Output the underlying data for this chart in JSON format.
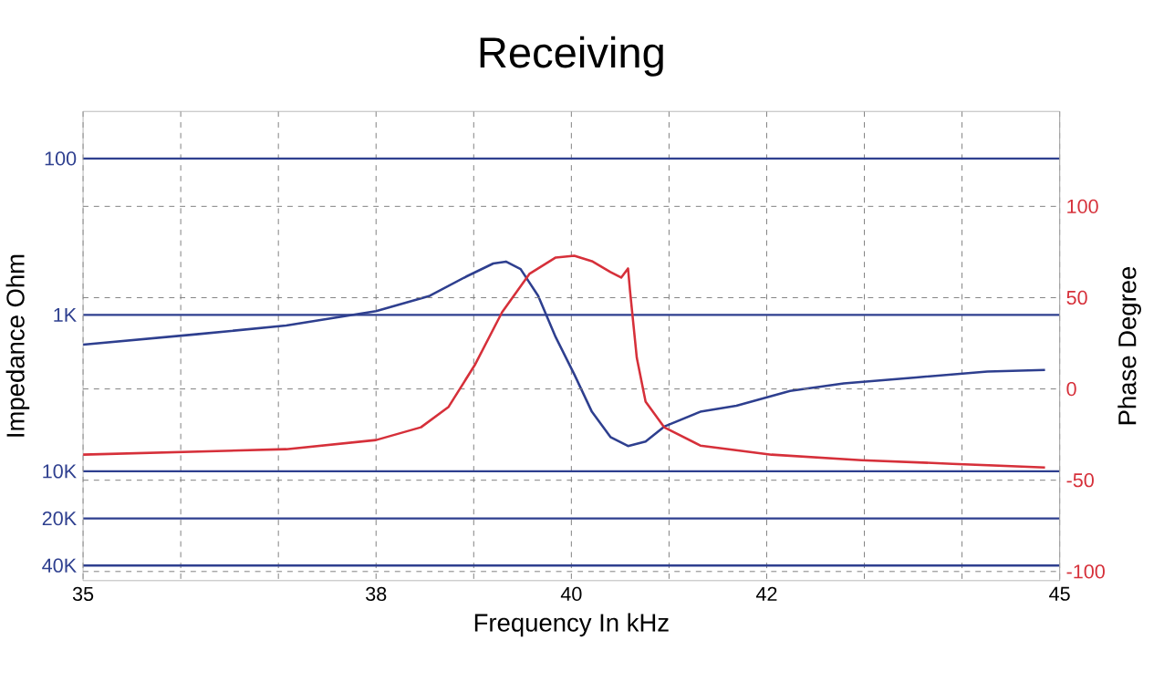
{
  "chart_data": {
    "type": "line",
    "title": "Receiving",
    "xlabel": "Frequency In kHz",
    "ylabel": "Impedance Ohm",
    "y2label": "Phase Degree",
    "xlim": [
      35,
      45
    ],
    "xticks": [
      35,
      {
        "value": 36,
        "label": null
      },
      {
        "value": 37,
        "label": null
      },
      38,
      {
        "value": 39,
        "label": null
      },
      40,
      {
        "value": 41,
        "label": null
      },
      42,
      {
        "value": 43,
        "label": null
      },
      {
        "value": 44,
        "label": null
      },
      45
    ],
    "ylim": [
      50000,
      50
    ],
    "log": "y",
    "yticks": [
      100,
      {
        "value": 1000,
        "label": "1K"
      },
      {
        "value": 10000,
        "label": "10K"
      },
      {
        "value": 20000,
        "label": "20K"
      },
      {
        "value": 40000,
        "label": "40K"
      }
    ],
    "y2lim": [
      -105,
      152
    ],
    "y2ticks": [
      -100,
      -50,
      0,
      50,
      100
    ],
    "grid": true,
    "marker": "none",
    "series": [
      {
        "color": "#2e3f8f",
        "x": [
          35,
          36.16,
          37.08,
          38.0,
          38.55,
          38.92,
          39.2,
          39.33,
          39.48,
          39.66,
          39.84,
          40.03,
          40.21,
          40.4,
          40.58,
          40.76,
          40.95,
          41.32,
          41.69,
          42.24,
          42.79,
          43.53,
          44.26,
          44.85
        ],
        "values": [
          1550,
          1330,
          1170,
          946,
          755,
          570,
          469,
          456,
          509,
          755,
          1390,
          2400,
          4160,
          6040,
          6890,
          6450,
          5180,
          4160,
          3810,
          3060,
          2740,
          2510,
          2300,
          2250
        ]
      },
      {
        "color": "#d6303a",
        "axis": "y2",
        "x": [
          35,
          37.08,
          38.0,
          38.46,
          38.74,
          39.01,
          39.29,
          39.57,
          39.84,
          40.03,
          40.21,
          40.4,
          40.51,
          40.58,
          40.6,
          40.67,
          40.76,
          40.95,
          41.32,
          42.05,
          42.97,
          43.9,
          44.85
        ],
        "values": [
          -36,
          -33,
          -28,
          -21,
          -10,
          13,
          42,
          63,
          72,
          73,
          70,
          64,
          61,
          66,
          54,
          17,
          -7,
          -21,
          -31,
          -36,
          -39,
          -41,
          -43
        ]
      }
    ]
  }
}
